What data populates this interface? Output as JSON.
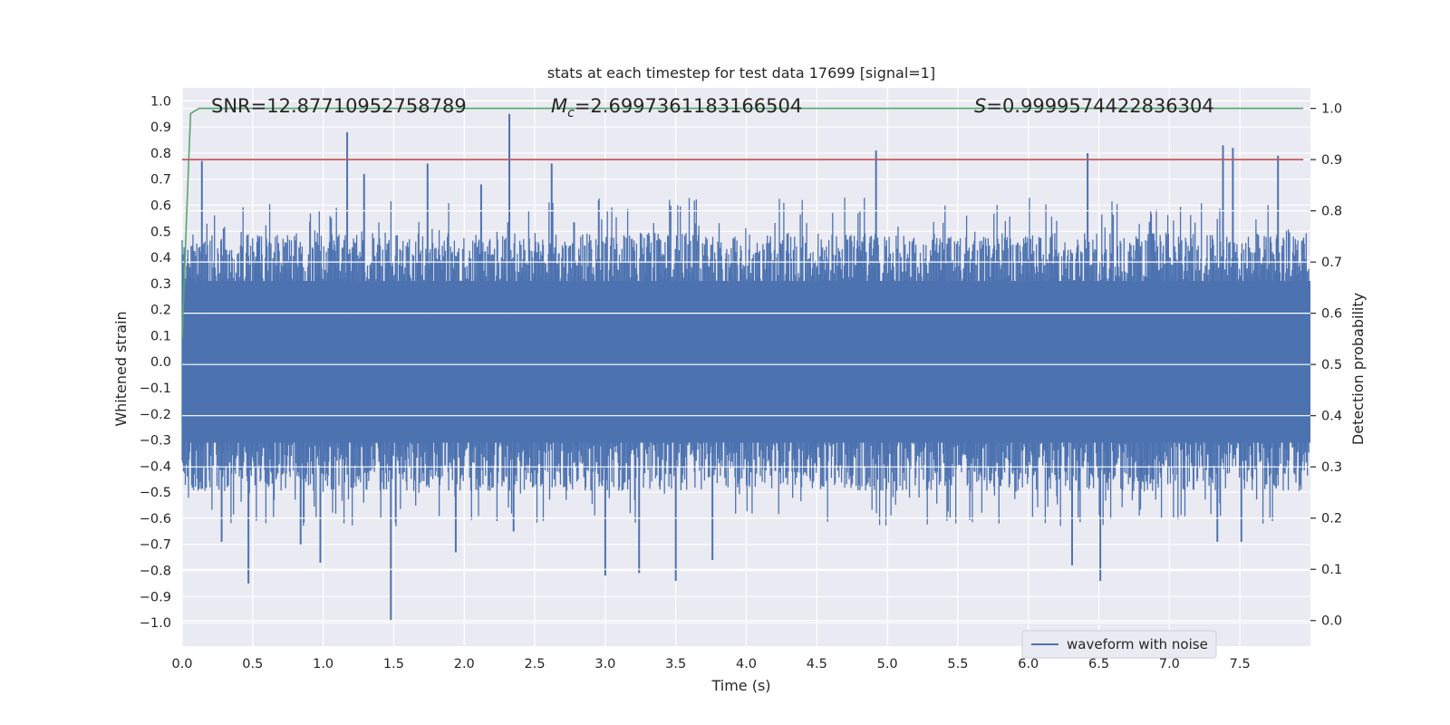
{
  "chart_data": {
    "type": "line",
    "title": "stats at each timestep for test data 17699 [signal=1]",
    "xlabel": "Time (s)",
    "ylabel_left": "Whitened strain",
    "ylabel_right": "Detection probability",
    "xlim": [
      0.0,
      8.0
    ],
    "ylim_left": [
      -1.09,
      1.05
    ],
    "ylim_right": [
      -0.05,
      1.04
    ],
    "x_ticks": [
      "0.0",
      "0.5",
      "1.0",
      "1.5",
      "2.0",
      "2.5",
      "3.0",
      "3.5",
      "4.0",
      "4.5",
      "5.0",
      "5.5",
      "6.0",
      "6.5",
      "7.0",
      "7.5"
    ],
    "x_tick_values": [
      0.0,
      0.5,
      1.0,
      1.5,
      2.0,
      2.5,
      3.0,
      3.5,
      4.0,
      4.5,
      5.0,
      5.5,
      6.0,
      6.5,
      7.0,
      7.5
    ],
    "y_left_ticks": [
      "1.0",
      "0.9",
      "0.8",
      "0.7",
      "0.6",
      "0.5",
      "0.4",
      "0.3",
      "0.2",
      "0.1",
      "0.0",
      "−0.1",
      "−0.2",
      "−0.3",
      "−0.4",
      "−0.5",
      "−0.6",
      "−0.7",
      "−0.8",
      "−0.9",
      "−1.0"
    ],
    "y_left_tick_values": [
      1.0,
      0.9,
      0.8,
      0.7,
      0.6,
      0.5,
      0.4,
      0.3,
      0.2,
      0.1,
      0.0,
      -0.1,
      -0.2,
      -0.3,
      -0.4,
      -0.5,
      -0.6,
      -0.7,
      -0.8,
      -0.9,
      -1.0
    ],
    "y_right_ticks": [
      "1.0",
      "0.9",
      "0.8",
      "0.7",
      "0.6",
      "0.5",
      "0.4",
      "0.3",
      "0.2",
      "0.1",
      "0.0"
    ],
    "y_right_tick_values": [
      1.0,
      0.9,
      0.8,
      0.7,
      0.6,
      0.5,
      0.4,
      0.3,
      0.2,
      0.1,
      0.0
    ],
    "grid": true,
    "legend_position": "lower-right",
    "annotations": {
      "snr": "SNR=12.87710952758789",
      "mc_prefix": "M",
      "mc_sub": "c",
      "mc_value": "=2.6997361183166504",
      "s_prefix": "S",
      "s_value": "=0.9999574422836304"
    },
    "series": [
      {
        "name": "waveform with noise",
        "axis": "left",
        "color": "#4c72b0",
        "style": "dense noise",
        "typical_amplitude": 0.45,
        "peaks": [
          {
            "x": 0.14,
            "y": 0.77
          },
          {
            "x": 1.17,
            "y": 0.88
          },
          {
            "x": 1.74,
            "y": 0.76
          },
          {
            "x": 2.32,
            "y": 0.95
          },
          {
            "x": 2.62,
            "y": 0.76
          },
          {
            "x": 4.92,
            "y": 0.81
          },
          {
            "x": 6.42,
            "y": 0.8
          },
          {
            "x": 7.38,
            "y": 0.83
          },
          {
            "x": 7.45,
            "y": 0.82
          },
          {
            "x": 7.77,
            "y": 0.79
          },
          {
            "x": 1.29,
            "y": 0.72
          },
          {
            "x": 2.12,
            "y": 0.68
          },
          {
            "x": 0.47,
            "y": -0.85
          },
          {
            "x": 0.84,
            "y": -0.7
          },
          {
            "x": 0.98,
            "y": -0.77
          },
          {
            "x": 1.48,
            "y": -0.99
          },
          {
            "x": 1.94,
            "y": -0.73
          },
          {
            "x": 3.0,
            "y": -0.82
          },
          {
            "x": 3.24,
            "y": -0.81
          },
          {
            "x": 3.5,
            "y": -0.84
          },
          {
            "x": 3.76,
            "y": -0.76
          },
          {
            "x": 6.31,
            "y": -0.78
          },
          {
            "x": 6.51,
            "y": -0.84
          },
          {
            "x": 7.34,
            "y": -0.69
          },
          {
            "x": 7.51,
            "y": -0.69
          },
          {
            "x": 0.28,
            "y": -0.69
          },
          {
            "x": 2.35,
            "y": -0.65
          }
        ]
      },
      {
        "name": "",
        "axis": "right",
        "color": "#55a868",
        "x": [
          0.0,
          0.03,
          0.06,
          0.12,
          0.2,
          7.95
        ],
        "y": [
          0.55,
          0.78,
          0.99,
          1.0,
          1.0,
          1.0
        ]
      },
      {
        "name": "",
        "axis": "right",
        "color": "#c44e52",
        "x": [
          0.0,
          7.95
        ],
        "y": [
          0.9,
          0.9
        ]
      }
    ]
  },
  "colors": {
    "plot_background": "#eaeaf2",
    "grid": "#ffffff",
    "text": "#262626"
  }
}
